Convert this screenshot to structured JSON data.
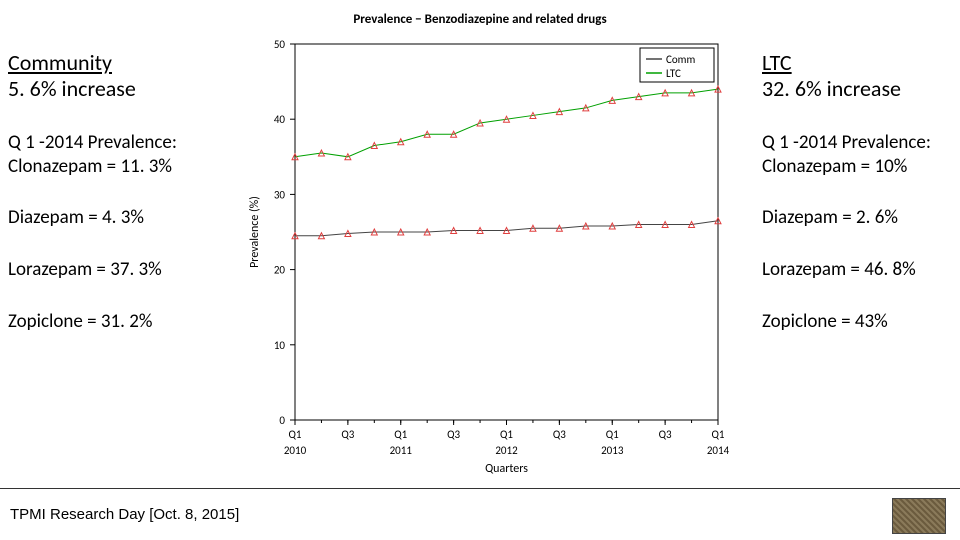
{
  "title": "Prevalence − Benzodiazepine and related drugs",
  "left": {
    "heading": "Community",
    "increase": "5. 6% increase",
    "sub_head": "Q 1 -2014 Prevalence:",
    "clonazepam": "Clonazepam = 11. 3%",
    "diazepam": "Diazepam = 4. 3%",
    "lorazepam": "Lorazepam = 37. 3%",
    "zopiclone": "Zopiclone = 31. 2%"
  },
  "right": {
    "heading": "LTC",
    "increase": "32. 6% increase",
    "sub_head": "Q 1 -2014 Prevalence:",
    "clonazepam": "Clonazepam = 10%",
    "diazepam": "Diazepam = 2. 6%",
    "lorazepam": "Lorazepam = 46. 8%",
    "zopiclone": "Zopiclone = 43%"
  },
  "footer": "TPMI Research Day [Oct. 8, 2015]",
  "chart": {
    "type": "line",
    "xlabel": "Quarters",
    "ylabel": "Prevalence (%)",
    "ylim": [
      0,
      50
    ],
    "yticks": [
      0,
      10,
      20,
      30,
      40,
      50
    ],
    "xticks_major": [
      "Q1",
      "Q3",
      "Q1",
      "Q3",
      "Q1",
      "Q3",
      "Q1",
      "Q3",
      "Q1"
    ],
    "xticks_year": [
      "2010",
      "",
      "2011",
      "",
      "2012",
      "",
      "2013",
      "",
      "2014"
    ],
    "x_positions": [
      0,
      1,
      2,
      3,
      4,
      5,
      6,
      7,
      8,
      9,
      10,
      11,
      12,
      13,
      14,
      15,
      16
    ],
    "legend": [
      {
        "label": "Comm",
        "color": "#444444"
      },
      {
        "label": "LTC",
        "color": "#00a000"
      }
    ],
    "series": {
      "comm": {
        "color": "#444444",
        "marker_color": "#e04040",
        "y": [
          24.5,
          24.5,
          24.8,
          25,
          25,
          25,
          25.2,
          25.2,
          25.2,
          25.5,
          25.5,
          25.8,
          25.8,
          26,
          26,
          26,
          26.5
        ]
      },
      "ltc": {
        "color": "#00a000",
        "marker_color": "#e04040",
        "y": [
          35,
          35.5,
          35,
          36.5,
          37,
          38,
          38,
          39.5,
          40,
          40.5,
          41,
          41.5,
          42.5,
          43,
          43.5,
          43.5,
          44
        ]
      }
    },
    "line_width": 1,
    "marker_size": 3,
    "marker_shape": "triangle",
    "background_color": "#ffffff",
    "axis_color": "#000000",
    "font_size": 11
  }
}
